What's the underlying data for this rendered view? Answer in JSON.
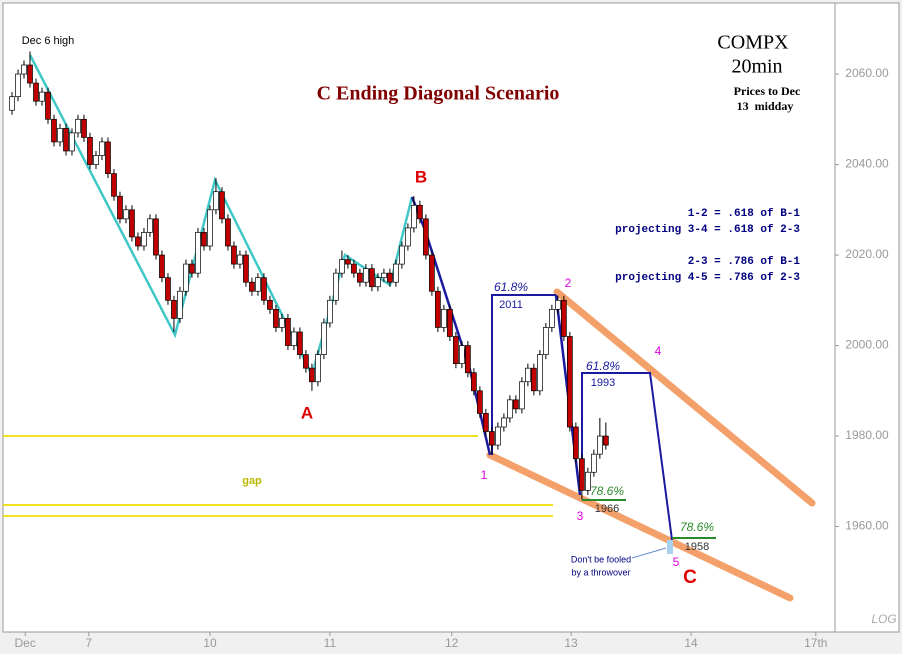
{
  "chart_data": {
    "type": "candlestick",
    "title": "C Ending Diagonal Scenario",
    "symbol": "COMPX",
    "interval": "20min",
    "note_lines": [
      "Prices to Dec",
      "13  midday"
    ],
    "fib_notes": [
      "1-2 = .618 of B-1",
      "projecting 3-4 = .618 of 2-3",
      "2-3 = .786 of B-1",
      "projecting 4-5 = .786 of 2-3"
    ],
    "annotations": {
      "dec6_high": "Dec 6 high",
      "wave_a": "A",
      "wave_b": "B",
      "wave_c": "C",
      "w1": "1",
      "w2": "2",
      "w3": "3",
      "w4": "4",
      "w5": "5",
      "gap": "gap",
      "fib1": "61.8%",
      "fib1_price": "2011",
      "fib2": "61.8%",
      "fib2_price": "1993",
      "fib3": "78.6%",
      "fib3_price": "1966",
      "fib4": "78.6%",
      "fib4_price": "1958",
      "throwover1": "Don't be fooled",
      "throwover2": "by a throwover"
    },
    "scale_label": "LOG",
    "up_color": "#ffffff",
    "down_color": "#c00000",
    "ylim": [
      1936.7,
      2075.7
    ],
    "yticks": [
      {
        "value": 1960,
        "label": "1960.00"
      },
      {
        "value": 1980,
        "label": "1980.00"
      },
      {
        "value": 2000,
        "label": "2000.00"
      },
      {
        "value": 2020,
        "label": "2020.00"
      },
      {
        "value": 2040,
        "label": "2040.00"
      },
      {
        "value": 2060,
        "label": "2060.00"
      }
    ],
    "xlim": [
      -1.5,
      137.2
    ],
    "xticks": [
      {
        "value": 2.2,
        "label": "Dec"
      },
      {
        "value": 12.8,
        "label": "7"
      },
      {
        "value": 33,
        "label": "10"
      },
      {
        "value": 53,
        "label": "11"
      },
      {
        "value": 73.3,
        "label": "12"
      },
      {
        "value": 93.2,
        "label": "13"
      },
      {
        "value": 113.2,
        "label": "14"
      },
      {
        "value": 134,
        "label": "17th"
      }
    ],
    "open": [
      2052,
      2055,
      2060,
      2062,
      2058,
      2054,
      2056,
      2050,
      2045,
      2048,
      2043,
      2047,
      2050,
      2046,
      2040,
      2042,
      2045,
      2038,
      2033,
      2028,
      2030,
      2024,
      2022,
      2025,
      2028,
      2020,
      2015,
      2010,
      2006,
      2012,
      2018,
      2016,
      2025,
      2022,
      2030,
      2034,
      2028,
      2022,
      2018,
      2020,
      2014,
      2012,
      2015,
      2010,
      2008,
      2004,
      2006,
      2000,
      2003,
      1998,
      1995,
      1992,
      1998,
      2005,
      2010,
      2016,
      2019,
      2018,
      2016,
      2014,
      2017,
      2013,
      2015,
      2016,
      2014,
      2018,
      2022,
      2026,
      2031,
      2028,
      2020,
      2012,
      2004,
      2008,
      2002,
      1996,
      2000,
      1994,
      1990,
      1985,
      1981,
      1978,
      1982,
      1984,
      1988,
      1986,
      1992,
      1995,
      1990,
      1998,
      2004,
      2008,
      2010,
      2002,
      1982,
      1975,
      1968,
      1972,
      1976,
      1980
    ],
    "high": [
      2056,
      2061,
      2063,
      2065,
      2059,
      2057,
      2057,
      2051,
      2049,
      2049,
      2048,
      2051,
      2051,
      2047,
      2043,
      2046,
      2046,
      2039,
      2034,
      2031,
      2031,
      2025,
      2026,
      2029,
      2029,
      2021,
      2016,
      2011,
      2013,
      2019,
      2019,
      2026,
      2026,
      2031,
      2037,
      2035,
      2029,
      2023,
      2021,
      2021,
      2015,
      2016,
      2016,
      2011,
      2009,
      2007,
      2007,
      2004,
      2004,
      1999,
      1996,
      1999,
      2006,
      2011,
      2017,
      2021,
      2020,
      2019,
      2017,
      2018,
      2018,
      2016,
      2017,
      2017,
      2019,
      2023,
      2027,
      2033,
      2032,
      2029,
      2021,
      2013,
      2009,
      2009,
      2003,
      2001,
      2001,
      1995,
      1991,
      1986,
      1982,
      1983,
      1985,
      1989,
      1989,
      1993,
      1996,
      1996,
      1999,
      2005,
      2009,
      2011,
      2011,
      2003,
      1983,
      1976,
      1973,
      1977,
      1984,
      1983
    ],
    "low": [
      2051,
      2054,
      2059,
      2057,
      2053,
      2053,
      2049,
      2044,
      2044,
      2042,
      2042,
      2046,
      2045,
      2039,
      2039,
      2041,
      2037,
      2032,
      2027,
      2027,
      2023,
      2021,
      2021,
      2024,
      2019,
      2014,
      2009,
      2003,
      2005,
      2011,
      2015,
      2015,
      2021,
      2021,
      2029,
      2027,
      2021,
      2017,
      2017,
      2013,
      2011,
      2011,
      2009,
      2007,
      2003,
      2003,
      1999,
      1999,
      1997,
      1994,
      1990,
      1991,
      1997,
      2004,
      2009,
      2015,
      2017,
      2015,
      2013,
      2013,
      2012,
      2012,
      2014,
      2013,
      2013,
      2017,
      2021,
      2025,
      2027,
      2019,
      2011,
      2003,
      2003,
      2001,
      1995,
      1995,
      1993,
      1989,
      1984,
      1980,
      1976,
      1977,
      1981,
      1983,
      1985,
      1985,
      1991,
      1989,
      1989,
      1997,
      2003,
      2007,
      2001,
      1981,
      1974,
      1966,
      1967,
      1971,
      1975,
      1977
    ],
    "close": [
      2055,
      2060,
      2062,
      2058,
      2054,
      2056,
      2050,
      2045,
      2048,
      2043,
      2047,
      2050,
      2046,
      2040,
      2042,
      2045,
      2038,
      2033,
      2028,
      2030,
      2024,
      2022,
      2025,
      2028,
      2020,
      2015,
      2010,
      2006,
      2012,
      2018,
      2016,
      2025,
      2022,
      2030,
      2034,
      2028,
      2022,
      2018,
      2020,
      2014,
      2012,
      2015,
      2010,
      2008,
      2004,
      2006,
      2000,
      2003,
      1998,
      1995,
      1992,
      1998,
      2005,
      2010,
      2016,
      2019,
      2018,
      2016,
      2014,
      2017,
      2013,
      2015,
      2016,
      2014,
      2018,
      2022,
      2026,
      2031,
      2028,
      2020,
      2012,
      2004,
      2008,
      2002,
      1996,
      2000,
      1994,
      1990,
      1985,
      1981,
      1978,
      1982,
      1984,
      1988,
      1986,
      1992,
      1995,
      1990,
      1998,
      2004,
      2008,
      2010,
      2002,
      1982,
      1975,
      1968,
      1972,
      1976,
      1980,
      1978
    ]
  }
}
